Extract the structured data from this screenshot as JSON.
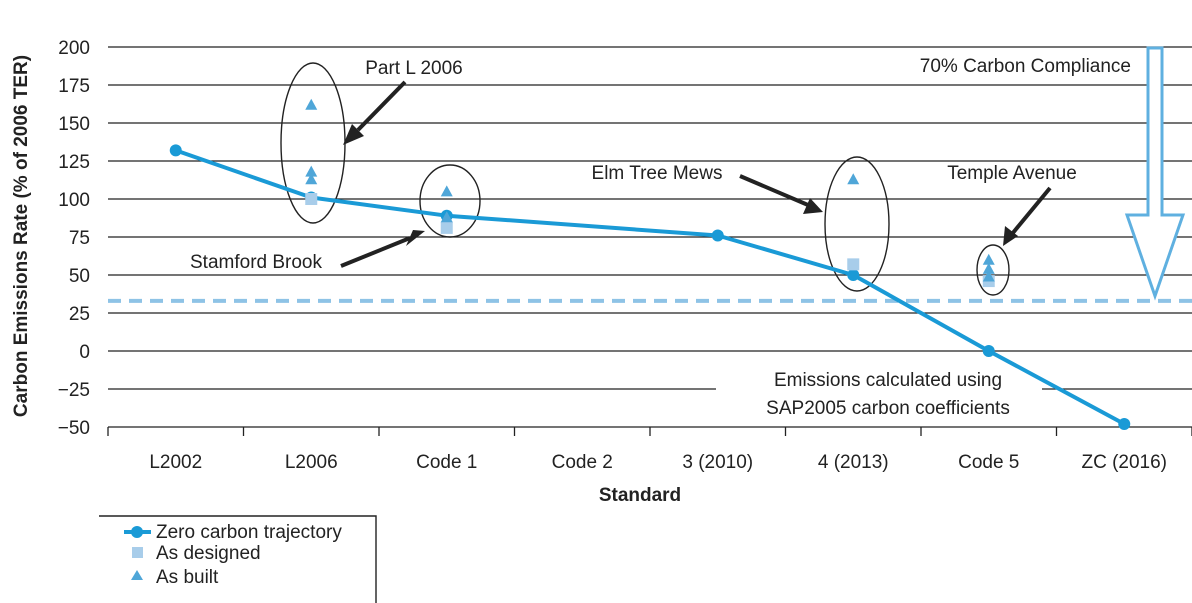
{
  "chart_data": {
    "type": "line",
    "title": "",
    "xlabel": "Standard",
    "ylabel": "Carbon Emissions Rate (% of 2006 TER)",
    "categories": [
      "L2002",
      "L2006",
      "Code 1",
      "Code 2",
      "3 (2010)",
      "4 (2013)",
      "Code 5",
      "ZC (2016)"
    ],
    "ylim": [
      -50,
      200
    ],
    "yticks": [
      200,
      175,
      150,
      125,
      100,
      75,
      50,
      25,
      0,
      -25,
      -50
    ],
    "ytick_labels": [
      "200",
      "175",
      "150",
      "125",
      "100",
      "75",
      "50",
      "25",
      "0",
      "−25",
      "−50"
    ],
    "grid": true,
    "legend_position": "bottom-left",
    "series": [
      {
        "name": "Zero carbon trajectory",
        "style": "line-circle",
        "color": "#1a9ad6",
        "points": [
          {
            "x": "L2002",
            "y": 132
          },
          {
            "x": "L2006",
            "y": 101
          },
          {
            "x": "Code 1",
            "y": 89
          },
          {
            "x": "3 (2010)",
            "y": 76
          },
          {
            "x": "4 (2013)",
            "y": 50
          },
          {
            "x": "Code 5",
            "y": 0
          },
          {
            "x": "ZC (2016)",
            "y": -48
          }
        ]
      },
      {
        "name": "As designed",
        "style": "square",
        "color": "#a8cdea",
        "points": [
          {
            "x": "L2006",
            "y": 100
          },
          {
            "x": "Code 1",
            "y": 81
          },
          {
            "x": "4 (2013)",
            "y": 57
          },
          {
            "x": "Code 5",
            "y": 46
          }
        ]
      },
      {
        "name": "As built",
        "style": "triangle",
        "color": "#4fa6d8",
        "points": [
          {
            "x": "L2006",
            "y": 162
          },
          {
            "x": "L2006",
            "y": 118
          },
          {
            "x": "L2006",
            "y": 113
          },
          {
            "x": "Code 1",
            "y": 105
          },
          {
            "x": "Code 1",
            "y": 88
          },
          {
            "x": "4 (2013)",
            "y": 113
          },
          {
            "x": "Code 5",
            "y": 60
          },
          {
            "x": "Code 5",
            "y": 54
          },
          {
            "x": "Code 5",
            "y": 49
          }
        ]
      }
    ],
    "reference_line": {
      "label": "70% Carbon Compliance",
      "y": 33,
      "color": "#8ec3e6"
    },
    "annotations": [
      {
        "id": "part-l-2006",
        "text": "Part L 2006"
      },
      {
        "id": "stamford-brook",
        "text": "Stamford Brook"
      },
      {
        "id": "elm-tree-mews",
        "text": "Elm Tree Mews"
      },
      {
        "id": "temple-avenue",
        "text": "Temple Avenue"
      },
      {
        "id": "emissions-note-1",
        "text": "Emissions calculated using"
      },
      {
        "id": "emissions-note-2",
        "text": "SAP2005 carbon coefficients"
      }
    ]
  }
}
